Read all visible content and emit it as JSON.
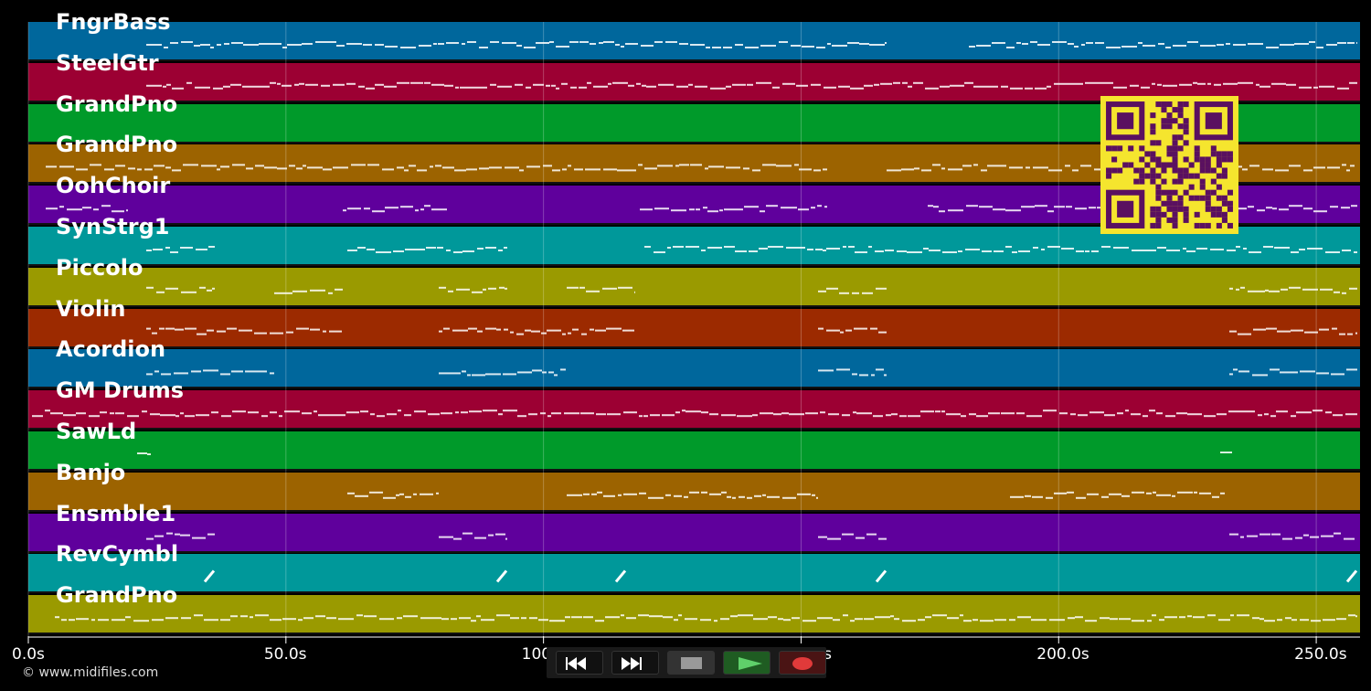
{
  "tracks": [
    {
      "name": "FngrBass",
      "color": "#00679c"
    },
    {
      "name": "SteelGtr",
      "color": "#9c0033"
    },
    {
      "name": "GrandPno",
      "color": "#009a2a"
    },
    {
      "name": "GrandPno",
      "color": "#9c6300"
    },
    {
      "name": "OohChoir",
      "color": "#5f009c"
    },
    {
      "name": "SynStrg1",
      "color": "#00989a"
    },
    {
      "name": "Piccolo",
      "color": "#9a9a00"
    },
    {
      "name": "Violin",
      "color": "#9c2a00"
    },
    {
      "name": "Acordion",
      "color": "#00679c"
    },
    {
      "name": "GM Drums",
      "color": "#9c0033"
    },
    {
      "name": "SawLd",
      "color": "#009a2a"
    },
    {
      "name": "Banjo",
      "color": "#9c6300"
    },
    {
      "name": "Ensmble1",
      "color": "#5f009c"
    },
    {
      "name": "RevCymbl",
      "color": "#00989a"
    },
    {
      "name": "GrandPno",
      "color": "#9a9a00"
    }
  ],
  "timeline": {
    "ticks": [
      "0.0s",
      "50.0s",
      "100.0s",
      "150.0s",
      "200.0s",
      "250.0s"
    ],
    "tick_values": [
      0,
      50,
      100,
      150,
      200,
      250
    ],
    "range_seconds": [
      0,
      258.5
    ]
  },
  "copyright": "© www.midifiles.com",
  "controls": [
    {
      "name": "rewind-button",
      "icon": "rewind-icon"
    },
    {
      "name": "fast-forward-button",
      "icon": "fast-forward-icon"
    },
    {
      "name": "stop-button",
      "icon": "stop-icon"
    },
    {
      "name": "play-button",
      "icon": "play-icon"
    },
    {
      "name": "record-button",
      "icon": "record-icon"
    }
  ],
  "qr_code": {
    "icon": "qr-code-icon",
    "color": "#f5e52e",
    "module_color": "#5a1060"
  }
}
